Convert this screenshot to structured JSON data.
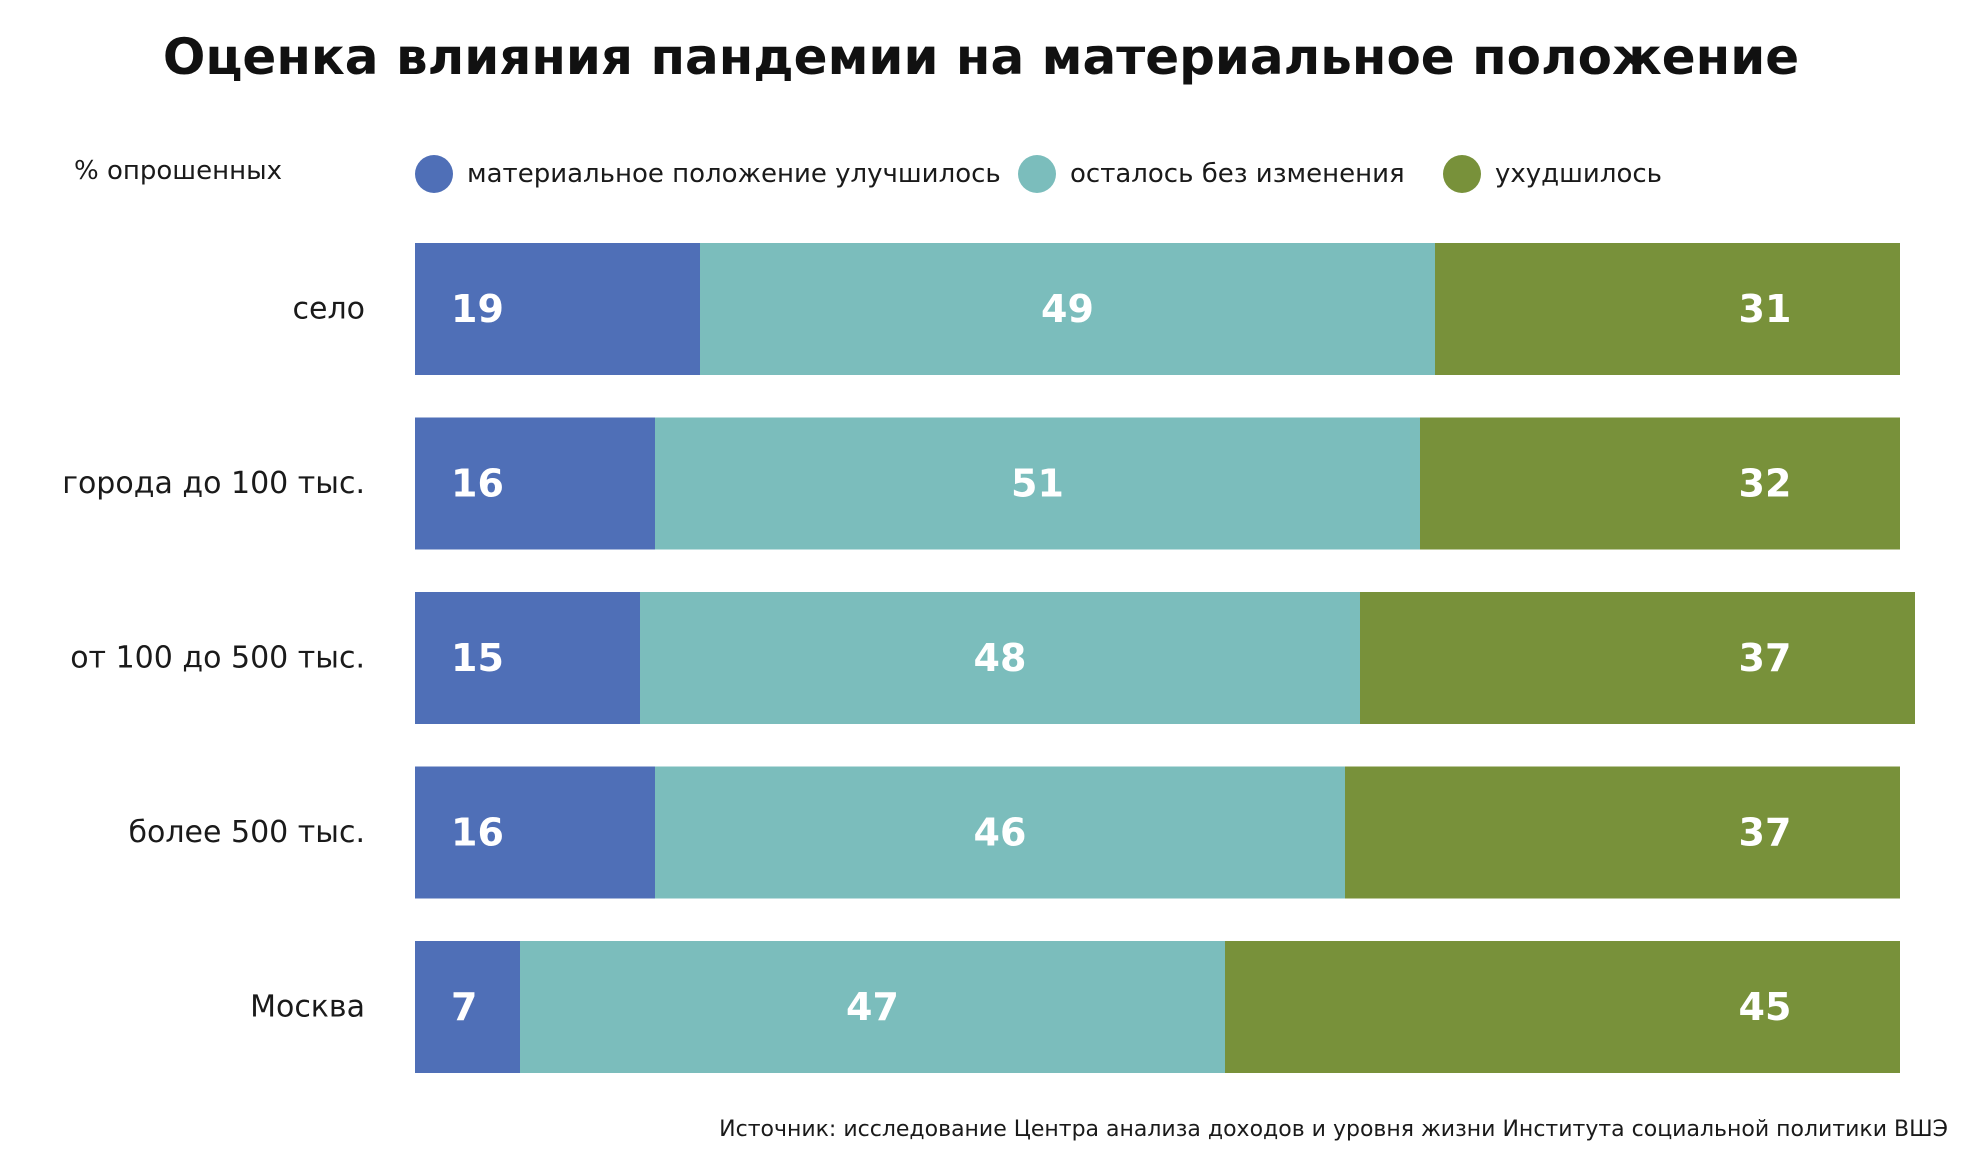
{
  "chart_data": {
    "type": "bar",
    "orientation": "horizontal",
    "stacked": true,
    "title": "Оценка влияния пандемии на материальное положение",
    "unit_label": "% опрошенных",
    "categories": [
      "село",
      "города до 100 тыс.",
      "от 100 до 500 тыс.",
      "более 500 тыс.",
      "Москва"
    ],
    "series": [
      {
        "name": "материальное положение улучшилось",
        "color": "#4f6fb7",
        "values": [
          19,
          16,
          15,
          16,
          7
        ]
      },
      {
        "name": "осталось без изменения",
        "color": "#7bbdbc",
        "values": [
          49,
          51,
          48,
          46,
          47
        ]
      },
      {
        "name": "ухудшилось",
        "color": "#78913a",
        "values": [
          31,
          32,
          37,
          37,
          45
        ]
      }
    ],
    "xlim": [
      0,
      100
    ],
    "grid": false,
    "legend_position": "top",
    "source": "Источник: исследование Центра анализа доходов и уровня жизни Института социальной политики ВШЭ"
  }
}
